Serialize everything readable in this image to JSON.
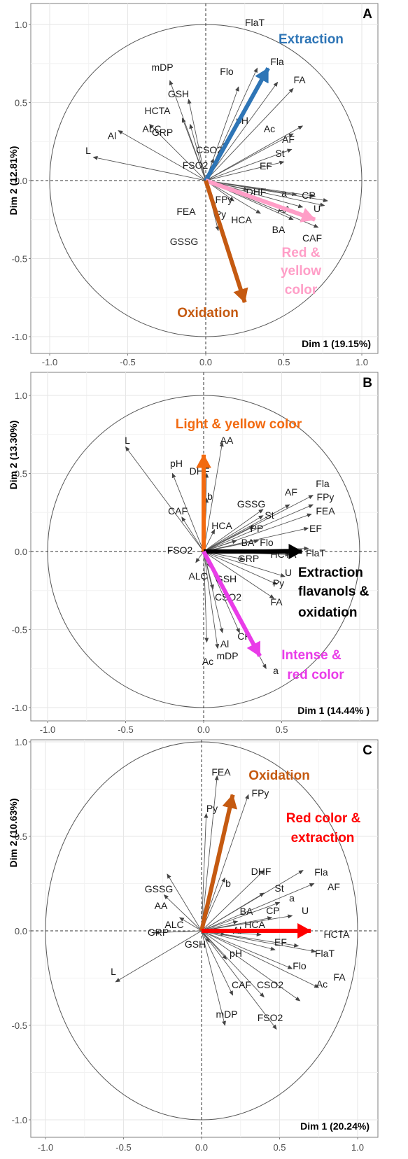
{
  "figure": {
    "x_ticks": [
      "-1.0",
      "-0.5",
      "0.0",
      "0.5",
      "1.0"
    ],
    "x_ticks_b": [
      "-1.0",
      "-0.5",
      "0.0",
      "0.5"
    ],
    "y_ticks": [
      "-1.0",
      "-0.5",
      "0.0",
      "0.5",
      "1.0"
    ]
  },
  "chart_data": [
    {
      "type": "scatter",
      "panel": "A",
      "title": "",
      "xlabel": "Dim 1 (19.15%)",
      "ylabel": "Dim 2 (12.81%)",
      "xlim": [
        -1.1,
        1.1
      ],
      "ylim": [
        -1.1,
        1.1
      ],
      "grid": true,
      "unit_circle": true,
      "variables": [
        {
          "name": "FlaT",
          "x": 0.33,
          "y": 0.72
        },
        {
          "name": "Fla",
          "x": 0.46,
          "y": 0.63
        },
        {
          "name": "Flo",
          "x": 0.21,
          "y": 0.6
        },
        {
          "name": "FA",
          "x": 0.56,
          "y": 0.59
        },
        {
          "name": "mDP",
          "x": -0.23,
          "y": 0.64
        },
        {
          "name": "GSH",
          "x": -0.11,
          "y": 0.52
        },
        {
          "name": "HCTA",
          "x": -0.15,
          "y": 0.4
        },
        {
          "name": "ALC",
          "x": -0.36,
          "y": 0.36
        },
        {
          "name": "GRP",
          "x": -0.1,
          "y": 0.36
        },
        {
          "name": "Al",
          "x": -0.56,
          "y": 0.32
        },
        {
          "name": "L",
          "x": -0.72,
          "y": 0.15
        },
        {
          "name": "pH",
          "x": 0.23,
          "y": 0.4
        },
        {
          "name": "Ac",
          "x": 0.56,
          "y": 0.3
        },
        {
          "name": "AF",
          "x": 0.62,
          "y": 0.35
        },
        {
          "name": "St",
          "x": 0.55,
          "y": 0.2
        },
        {
          "name": "EF",
          "x": 0.5,
          "y": 0.12
        },
        {
          "name": "CSO2",
          "x": 0.13,
          "y": 0.25
        },
        {
          "name": "FSO2",
          "x": 0.05,
          "y": 0.14
        },
        {
          "name": "DHF",
          "x": 0.58,
          "y": -0.09
        },
        {
          "name": "a",
          "x": 0.7,
          "y": -0.1
        },
        {
          "name": "CP",
          "x": 0.78,
          "y": -0.13
        },
        {
          "name": "U",
          "x": 0.76,
          "y": -0.16
        },
        {
          "name": "AA",
          "x": 0.62,
          "y": -0.17
        },
        {
          "name": "FPy",
          "x": 0.27,
          "y": -0.06
        },
        {
          "name": "CAF",
          "x": 0.72,
          "y": -0.3
        },
        {
          "name": "BA",
          "x": 0.56,
          "y": -0.25
        },
        {
          "name": "HCA",
          "x": 0.35,
          "y": -0.21
        },
        {
          "name": "Py",
          "x": 0.18,
          "y": -0.13
        },
        {
          "name": "FEA",
          "x": 0.06,
          "y": -0.17
        },
        {
          "name": "GSSG",
          "x": 0.08,
          "y": -0.32
        }
      ],
      "arrows": [
        {
          "label": "Extraction",
          "color": "#2e75b6",
          "x": 0.4,
          "y": 0.72
        },
        {
          "label": "Red & yellow color",
          "color": "#ff9ec7",
          "x": 0.7,
          "y": -0.25
        },
        {
          "label": "Oxidation",
          "color": "#c55a11",
          "x": 0.25,
          "y": -0.78
        }
      ]
    },
    {
      "type": "scatter",
      "panel": "B",
      "title": "",
      "xlabel": "Dim 1 (14.44% )",
      "ylabel": "Dim 2 (13.30%)",
      "xlim": [
        -1.1,
        1.1
      ],
      "ylim": [
        -1.1,
        1.1
      ],
      "grid": true,
      "unit_circle": true,
      "variables": [
        {
          "name": "L",
          "x": -0.5,
          "y": 0.67
        },
        {
          "name": "pH",
          "x": -0.2,
          "y": 0.5
        },
        {
          "name": "AA",
          "x": 0.12,
          "y": 0.7
        },
        {
          "name": "DHF",
          "x": 0.02,
          "y": 0.5
        },
        {
          "name": "b",
          "x": 0.02,
          "y": 0.34
        },
        {
          "name": "CAF",
          "x": -0.14,
          "y": 0.22
        },
        {
          "name": "HCA",
          "x": 0.07,
          "y": 0.14
        },
        {
          "name": "GSSG",
          "x": 0.38,
          "y": 0.27
        },
        {
          "name": "AF",
          "x": 0.55,
          "y": 0.3
        },
        {
          "name": "Fla",
          "x": 0.7,
          "y": 0.36
        },
        {
          "name": "FPy",
          "x": 0.7,
          "y": 0.3
        },
        {
          "name": "FEA",
          "x": 0.69,
          "y": 0.24
        },
        {
          "name": "EF",
          "x": 0.67,
          "y": 0.15
        },
        {
          "name": "St",
          "x": 0.38,
          "y": 0.23
        },
        {
          "name": "PP",
          "x": 0.32,
          "y": 0.16
        },
        {
          "name": "BA",
          "x": 0.21,
          "y": 0.07
        },
        {
          "name": "Flo",
          "x": 0.35,
          "y": 0.07
        },
        {
          "name": "FlaT",
          "x": 0.67,
          "y": 0.02
        },
        {
          "name": "HCTA",
          "x": 0.55,
          "y": -0.02
        },
        {
          "name": "GRP",
          "x": 0.26,
          "y": -0.05
        },
        {
          "name": "FSO2",
          "x": -0.02,
          "y": 0.0
        },
        {
          "name": "ALC",
          "x": -0.05,
          "y": -0.07
        },
        {
          "name": "GSH",
          "x": 0.04,
          "y": -0.1
        },
        {
          "name": "U",
          "x": 0.52,
          "y": -0.16
        },
        {
          "name": "Py",
          "x": 0.47,
          "y": -0.21
        },
        {
          "name": "FA",
          "x": 0.45,
          "y": -0.3
        },
        {
          "name": "CSO2",
          "x": 0.06,
          "y": -0.24
        },
        {
          "name": "CP",
          "x": 0.23,
          "y": -0.52
        },
        {
          "name": "Al",
          "x": 0.12,
          "y": -0.52
        },
        {
          "name": "Ac",
          "x": 0.02,
          "y": -0.58
        },
        {
          "name": "mDP",
          "x": 0.09,
          "y": -0.62
        },
        {
          "name": "a",
          "x": 0.4,
          "y": -0.75
        }
      ],
      "arrows": [
        {
          "label": "Light & yellow color",
          "color": "#f26a10",
          "x": 0.0,
          "y": 0.62
        },
        {
          "label": "Extraction flavanols & oxidation",
          "color": "#000000",
          "x": 0.63,
          "y": 0.0
        },
        {
          "label": "Intense & red color",
          "color": "#e93ce8",
          "x": 0.36,
          "y": -0.67
        }
      ]
    },
    {
      "type": "scatter",
      "panel": "C",
      "title": "",
      "xlabel": "Dim 1 (20.24%)",
      "ylabel": "Dim 2 (10.63%)",
      "xlim": [
        -1.1,
        1.1
      ],
      "ylim": [
        -1.1,
        1.1
      ],
      "grid": true,
      "unit_circle": true,
      "variables": [
        {
          "name": "FEA",
          "x": 0.1,
          "y": 0.82
        },
        {
          "name": "FPy",
          "x": 0.3,
          "y": 0.72
        },
        {
          "name": "Py",
          "x": 0.03,
          "y": 0.62
        },
        {
          "name": "DHF",
          "x": 0.4,
          "y": 0.32
        },
        {
          "name": "Fla",
          "x": 0.65,
          "y": 0.32
        },
        {
          "name": "AF",
          "x": 0.72,
          "y": 0.25
        },
        {
          "name": "St",
          "x": 0.4,
          "y": 0.2
        },
        {
          "name": "a",
          "x": 0.5,
          "y": 0.15
        },
        {
          "name": "U",
          "x": 0.58,
          "y": 0.08
        },
        {
          "name": "CP",
          "x": 0.45,
          "y": 0.07
        },
        {
          "name": "BA",
          "x": 0.23,
          "y": 0.05
        },
        {
          "name": "b",
          "x": 0.15,
          "y": 0.28
        },
        {
          "name": "GSSG",
          "x": -0.22,
          "y": 0.3
        },
        {
          "name": "AA",
          "x": -0.24,
          "y": 0.19
        },
        {
          "name": "ALC",
          "x": -0.14,
          "y": 0.07
        },
        {
          "name": "GRP",
          "x": -0.3,
          "y": -0.01
        },
        {
          "name": "L",
          "x": -0.55,
          "y": -0.27
        },
        {
          "name": "HCA",
          "x": 0.38,
          "y": -0.02
        },
        {
          "name": "Al",
          "x": 0.15,
          "y": -0.02
        },
        {
          "name": "HCTA",
          "x": 0.62,
          "y": -0.08
        },
        {
          "name": "EF",
          "x": 0.47,
          "y": -0.1
        },
        {
          "name": "FlaT",
          "x": 0.73,
          "y": -0.11
        },
        {
          "name": "Flo",
          "x": 0.58,
          "y": -0.2
        },
        {
          "name": "FA",
          "x": 0.75,
          "y": -0.3
        },
        {
          "name": "Ac",
          "x": 0.63,
          "y": -0.37
        },
        {
          "name": "GSH",
          "x": 0.05,
          "y": -0.06
        },
        {
          "name": "pH",
          "x": 0.16,
          "y": -0.15
        },
        {
          "name": "CAF",
          "x": 0.2,
          "y": -0.34
        },
        {
          "name": "CSO2",
          "x": 0.4,
          "y": -0.35
        },
        {
          "name": "mDP",
          "x": 0.15,
          "y": -0.5
        },
        {
          "name": "FSO2",
          "x": 0.48,
          "y": -0.52
        }
      ],
      "arrows": [
        {
          "label": "Oxidation",
          "color": "#c55a11",
          "x": 0.2,
          "y": 0.72
        },
        {
          "label": "Red color & extraction",
          "color": "#ff0000",
          "x": 0.7,
          "y": 0.0
        }
      ]
    }
  ]
}
